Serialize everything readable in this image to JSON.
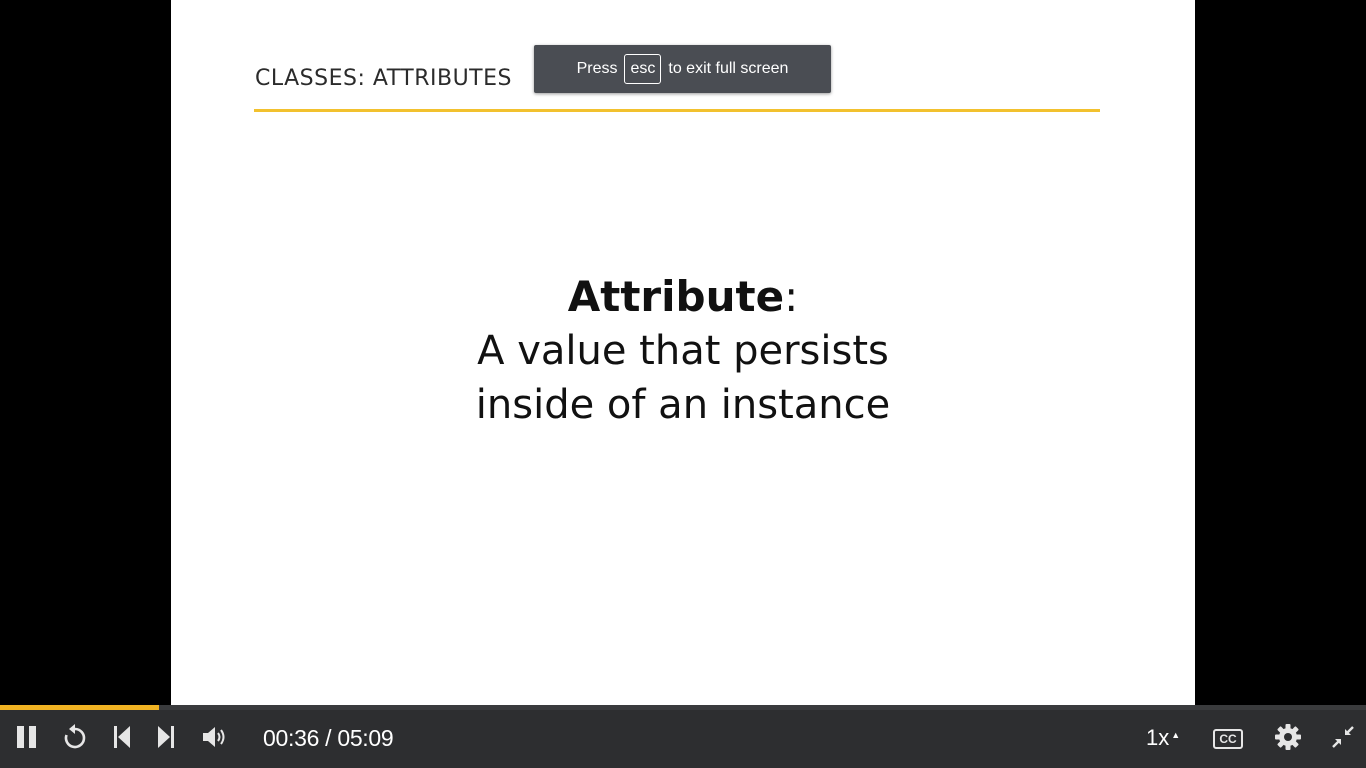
{
  "slide": {
    "title": "CLASSES: ATTRIBUTES",
    "term": "Attribute",
    "term_suffix": ":",
    "definition_line1": "A value that persists",
    "definition_line2": "inside of an instance"
  },
  "toast": {
    "prefix": "Press",
    "key": "esc",
    "suffix": "to exit full screen"
  },
  "player": {
    "progress_fraction": 0.1165,
    "time_display": "00:36 / 05:09",
    "speed": "1x",
    "cc_label": "CC",
    "accent_color": "#f0b323",
    "icons": [
      "pause-icon",
      "replay-icon",
      "previous-icon",
      "next-icon",
      "volume-icon",
      "chevron-up-icon",
      "settings-gear-icon",
      "exit-fullscreen-icon"
    ]
  }
}
